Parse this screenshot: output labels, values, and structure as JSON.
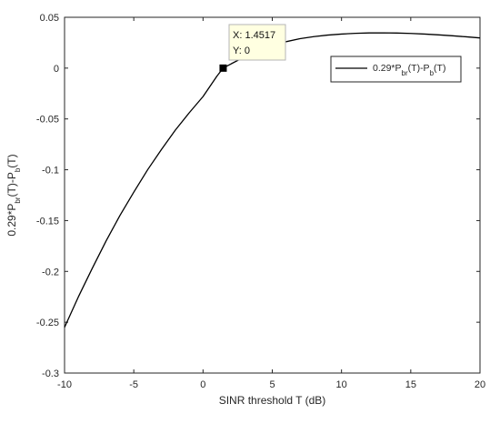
{
  "chart_data": {
    "type": "line",
    "xlabel": "SINR threshold T (dB)",
    "ylabel": {
      "parts": [
        {
          "text": "0.29*P",
          "sub": false
        },
        {
          "text": "br",
          "sub": true
        },
        {
          "text": "(T)-P",
          "sub": false
        },
        {
          "text": "b",
          "sub": true
        },
        {
          "text": "(T)",
          "sub": false
        }
      ]
    },
    "xlim": [
      -10,
      20
    ],
    "ylim": [
      -0.3,
      0.05
    ],
    "xticks": [
      -10,
      -5,
      0,
      5,
      10,
      15,
      20
    ],
    "xtick_labels": [
      "-10",
      "-5",
      "0",
      "5",
      "10",
      "15",
      "20"
    ],
    "yticks": [
      0.05,
      0,
      -0.05,
      -0.1,
      -0.15,
      -0.2,
      -0.25,
      -0.3
    ],
    "ytick_labels": [
      "0.05",
      "0",
      "-0.05",
      "-0.1",
      "-0.15",
      "-0.2",
      "-0.25",
      "-0.3"
    ],
    "grid": false,
    "legend_position": "top-right",
    "series": [
      {
        "name": {
          "parts": [
            {
              "text": "0.29*P",
              "sub": false
            },
            {
              "text": "br",
              "sub": true
            },
            {
              "text": "(T)-P",
              "sub": false
            },
            {
              "text": "b",
              "sub": true
            },
            {
              "text": "(T)",
              "sub": false
            }
          ]
        },
        "color": "#000000",
        "x": [
          -10,
          -9,
          -8,
          -7,
          -6,
          -5,
          -4,
          -3,
          -2,
          -1,
          0,
          1,
          1.4517,
          2,
          3,
          4,
          5,
          6,
          7,
          8,
          9,
          10,
          11,
          12,
          13,
          14,
          15,
          16,
          17,
          18,
          19,
          20
        ],
        "y": [
          -0.255,
          -0.225,
          -0.197,
          -0.17,
          -0.145,
          -0.122,
          -0.1,
          -0.08,
          -0.061,
          -0.044,
          -0.028,
          -0.008,
          0.0,
          0.004,
          0.011,
          0.017,
          0.022,
          0.026,
          0.029,
          0.031,
          0.0325,
          0.0335,
          0.0342,
          0.0346,
          0.0347,
          0.0345,
          0.0341,
          0.0335,
          0.0327,
          0.0318,
          0.0308,
          0.0297
        ]
      }
    ],
    "datatip": {
      "x": 1.4517,
      "y": 0,
      "x_text": "X: 1.4517",
      "y_text": "Y: 0",
      "background": "#ffffe1"
    }
  }
}
